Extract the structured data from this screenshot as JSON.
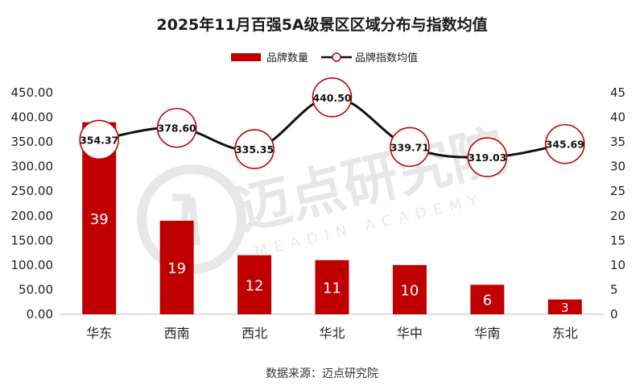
{
  "title": "2025年11月百强5A级景区区域分布与指数均值",
  "source": "数据来源：迈点研究院",
  "watermark": {
    "text": "迈点研究院",
    "subtext": "MEADIN ACADEMY"
  },
  "colors": {
    "bar": "#c00000",
    "line": "#111111",
    "marker_border": "#c00000",
    "marker_fill": "#ffffff"
  },
  "chart_data": {
    "type": "bar",
    "categories": [
      "华东",
      "西南",
      "西北",
      "华北",
      "华中",
      "华南",
      "东北"
    ],
    "series": [
      {
        "name": "品牌数量",
        "type": "bar",
        "axis": "right",
        "values": [
          39,
          19,
          12,
          11,
          10,
          6,
          3
        ]
      },
      {
        "name": "品牌指数均值",
        "type": "line",
        "axis": "left",
        "values": [
          354.37,
          378.6,
          335.35,
          440.5,
          339.71,
          319.03,
          345.69
        ]
      }
    ],
    "y_left": {
      "ylim": [
        0,
        450
      ],
      "ticks": [
        "0.00",
        "50.00",
        "100.00",
        "150.00",
        "200.00",
        "250.00",
        "300.00",
        "350.00",
        "400.00",
        "450.00"
      ]
    },
    "y_right": {
      "ylim": [
        0,
        45
      ],
      "ticks": [
        "0",
        "5",
        "10",
        "15",
        "20",
        "25",
        "30",
        "35",
        "40",
        "45"
      ]
    },
    "legend_position": "top-center",
    "grid": false
  }
}
